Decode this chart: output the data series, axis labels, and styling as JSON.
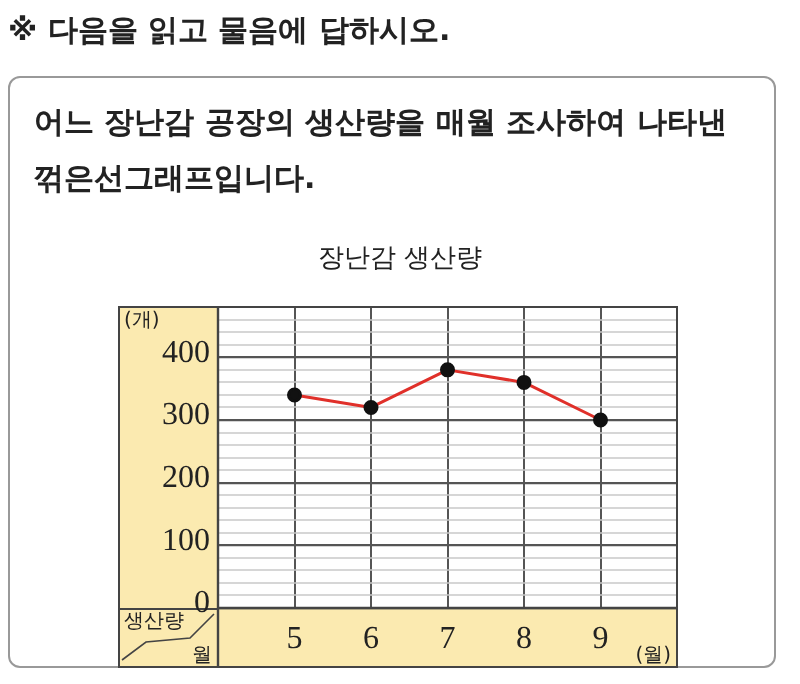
{
  "chart_data": {
    "type": "line",
    "title": "장난감 생산량",
    "annotations": [
      "※ 다음을 읽고 물음에 답하시오.",
      "어느 장난감 공장의 생산량을 매월 조사하여 나타낸 꺾은선그래프입니다.",
      "생산량",
      "월"
    ],
    "xlabel": "(월)",
    "ylabel": "(개)",
    "x": [
      5,
      6,
      7,
      8,
      9
    ],
    "series": [
      {
        "color": "#e0302a",
        "values": [
          340,
          320,
          380,
          360,
          300
        ]
      }
    ],
    "xlim": [
      4,
      10
    ],
    "xticks": [
      5,
      6,
      7,
      8,
      9
    ],
    "ylim": [
      0,
      480
    ],
    "yticks": [
      0,
      {
        "value": 20,
        "label": null
      },
      {
        "value": 40,
        "label": null
      },
      {
        "value": 60,
        "label": null
      },
      {
        "value": 80,
        "label": null
      },
      100,
      {
        "value": 120,
        "label": null
      },
      {
        "value": 140,
        "label": null
      },
      {
        "value": 160,
        "label": null
      },
      {
        "value": 180,
        "label": null
      },
      200,
      {
        "value": 220,
        "label": null
      },
      {
        "value": 240,
        "label": null
      },
      {
        "value": 260,
        "label": null
      },
      {
        "value": 280,
        "label": null
      },
      300,
      {
        "value": 320,
        "label": null
      },
      {
        "value": 340,
        "label": null
      },
      {
        "value": 360,
        "label": null
      },
      {
        "value": 380,
        "label": null
      },
      400,
      {
        "value": 420,
        "label": null
      },
      {
        "value": 440,
        "label": null
      },
      {
        "value": 460,
        "label": null
      }
    ],
    "grid": true,
    "legend": false,
    "marker": "circle",
    "line_style": "solid"
  }
}
